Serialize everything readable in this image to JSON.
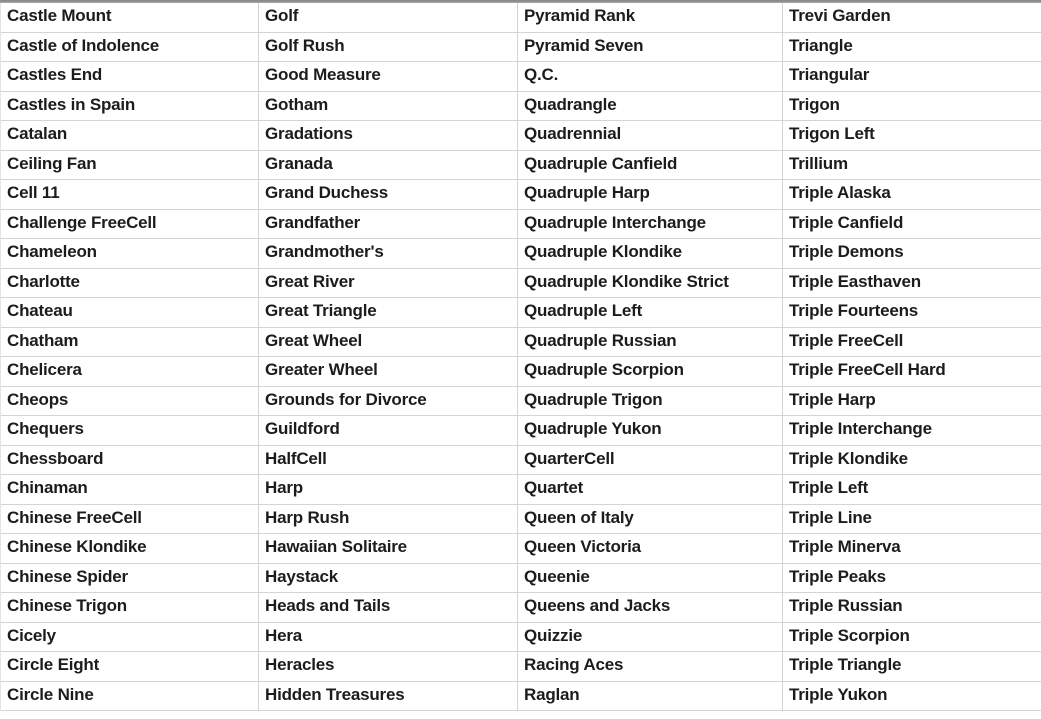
{
  "colors": {
    "background": "#ffffff",
    "grid_line": "#d4d4d4",
    "top_border": "#8e8e8e",
    "text": "#1c1c1c"
  },
  "table": {
    "rows_per_column": 24,
    "columns": [
      {
        "cells": [
          "Castle Mount",
          "Castle of Indolence",
          "Castles End",
          "Castles in Spain",
          "Catalan",
          "Ceiling Fan",
          "Cell 11",
          "Challenge FreeCell",
          "Chameleon",
          "Charlotte",
          "Chateau",
          "Chatham",
          "Chelicera",
          "Cheops",
          "Chequers",
          "Chessboard",
          "Chinaman",
          "Chinese FreeCell",
          "Chinese Klondike",
          "Chinese Spider",
          "Chinese Trigon",
          "Cicely",
          "Circle Eight",
          "Circle Nine"
        ]
      },
      {
        "cells": [
          "Golf",
          "Golf Rush",
          "Good Measure",
          "Gotham",
          "Gradations",
          "Granada",
          "Grand Duchess",
          "Grandfather",
          "Grandmother's",
          "Great River",
          "Great Triangle",
          "Great Wheel",
          "Greater Wheel",
          "Grounds for Divorce",
          "Guildford",
          "HalfCell",
          "Harp",
          "Harp Rush",
          "Hawaiian Solitaire",
          "Haystack",
          "Heads and Tails",
          "Hera",
          "Heracles",
          "Hidden Treasures"
        ]
      },
      {
        "cells": [
          "Pyramid Rank",
          "Pyramid Seven",
          "Q.C.",
          "Quadrangle",
          "Quadrennial",
          "Quadruple Canfield",
          "Quadruple Harp",
          "Quadruple Interchange",
          "Quadruple Klondike",
          "Quadruple Klondike Strict",
          "Quadruple Left",
          "Quadruple Russian",
          "Quadruple Scorpion",
          "Quadruple Trigon",
          "Quadruple Yukon",
          "QuarterCell",
          "Quartet",
          "Queen of Italy",
          "Queen Victoria",
          "Queenie",
          "Queens and Jacks",
          "Quizzie",
          "Racing Aces",
          "Raglan"
        ]
      },
      {
        "cells": [
          "Trevi Garden",
          "Triangle",
          "Triangular",
          "Trigon",
          "Trigon Left",
          "Trillium",
          "Triple Alaska",
          "Triple Canfield",
          "Triple Demons",
          "Triple Easthaven",
          "Triple Fourteens",
          "Triple FreeCell",
          "Triple FreeCell Hard",
          "Triple Harp",
          "Triple Interchange",
          "Triple Klondike",
          "Triple Left",
          "Triple Line",
          "Triple Minerva",
          "Triple Peaks",
          "Triple Russian",
          "Triple Scorpion",
          "Triple Triangle",
          "Triple Yukon"
        ]
      }
    ]
  }
}
